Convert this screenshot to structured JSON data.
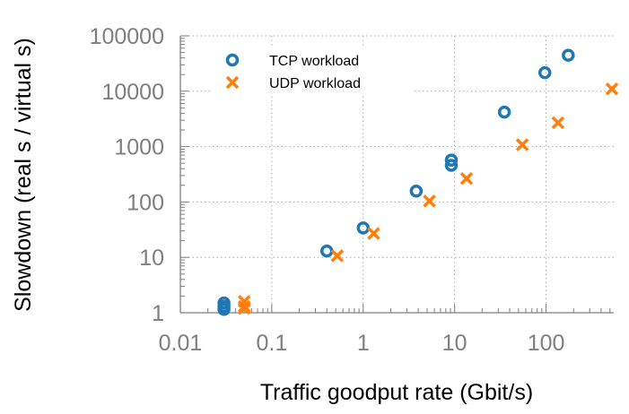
{
  "chart_data": {
    "type": "scatter",
    "title": "",
    "xlabel": "Traffic goodput rate (Gbit/s)",
    "ylabel": "Slowdown (real s / virtual s)",
    "xscale": "log",
    "yscale": "log",
    "xlim": [
      0.01,
      550
    ],
    "ylim": [
      1,
      100000
    ],
    "xticks": [
      0.01,
      0.1,
      1,
      10,
      100
    ],
    "xtick_labels": [
      "0.01",
      "0.1",
      "1",
      "10",
      "100"
    ],
    "yticks": [
      1,
      10,
      100,
      1000,
      10000,
      100000
    ],
    "ytick_labels": [
      "1",
      "10",
      "100",
      "1000",
      "10000",
      "100000"
    ],
    "grid": true,
    "legend_position": "top-left",
    "series": [
      {
        "name": "TCP workload",
        "marker": "circle",
        "color": "#1f77b4",
        "points": [
          [
            0.03,
            1.5
          ],
          [
            0.03,
            1.3
          ],
          [
            0.03,
            1.15
          ],
          [
            0.4,
            13
          ],
          [
            1.0,
            34
          ],
          [
            3.8,
            157
          ],
          [
            9.2,
            570
          ],
          [
            9.2,
            460
          ],
          [
            35,
            4200
          ],
          [
            97,
            21600
          ],
          [
            175,
            44700
          ]
        ]
      },
      {
        "name": "UDP workload",
        "marker": "x",
        "color": "#ff7f0e",
        "points": [
          [
            0.05,
            1.6
          ],
          [
            0.05,
            1.3
          ],
          [
            0.05,
            1.2
          ],
          [
            0.52,
            10.7
          ],
          [
            1.3,
            27
          ],
          [
            5.3,
            104
          ],
          [
            13.5,
            265
          ],
          [
            55,
            1080
          ],
          [
            135,
            2700
          ],
          [
            525,
            11000
          ]
        ]
      }
    ]
  }
}
